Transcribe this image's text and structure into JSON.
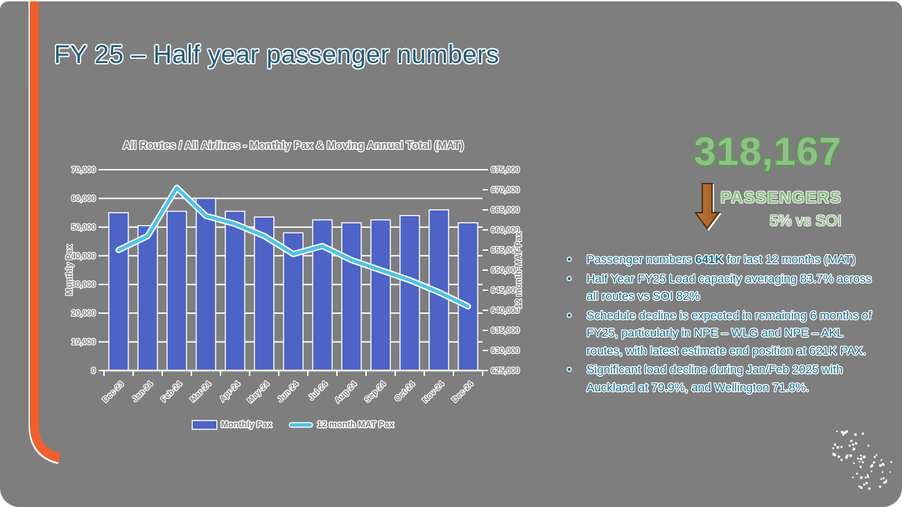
{
  "slide": {
    "title": "FY 25 – Half year passenger numbers"
  },
  "colors": {
    "background": "#7e7e7e",
    "ribbon_orange": "#f15f2c",
    "title_text": "#215c78",
    "bullet_text": "#176b8b",
    "bar_blue": "#4d63c6",
    "line_blue": "#4ec3e8",
    "grid_white": "#ffffff",
    "kpi_green": "#8fc186",
    "kpi_green_outline": "#5e9a54",
    "arrow_fill": "#b06a2c",
    "arrow_outline": "#4f2d10"
  },
  "chart_data": {
    "type": "bar+line combo",
    "title": "All Routes / All Airlines - Monthly Pax & Moving Annual Total (MAT)",
    "categories": [
      "Dec-23",
      "Jan-24",
      "Feb-24",
      "Mar-24",
      "Apr-24",
      "May-24",
      "Jun-24",
      "Jul-24",
      "Aug-24",
      "Sep-24",
      "Oct-24",
      "Nov-24",
      "Dec-24"
    ],
    "series": [
      {
        "name": "Monthly Pax",
        "type": "bar",
        "axis": "left",
        "values": [
          55000,
          50500,
          55500,
          60000,
          55500,
          53500,
          48000,
          52500,
          51500,
          52500,
          54000,
          56000,
          51500
        ]
      },
      {
        "name": "12 month MAT Pax",
        "type": "line",
        "axis": "right",
        "values": [
          655000,
          658500,
          670500,
          663500,
          661500,
          658500,
          654000,
          656000,
          652500,
          650000,
          647500,
          644500,
          641000
        ]
      }
    ],
    "left_axis": {
      "label": "Monthly Pax",
      "min": 0,
      "max": 70000,
      "step": 10000
    },
    "right_axis": {
      "label": "12 month MAT Pax",
      "min": 625000,
      "max": 675000,
      "step": 5000
    },
    "grid": true,
    "legend_position": "bottom"
  },
  "kpi": {
    "value": "318,167",
    "label": "PASSENGERS",
    "comparison": "5% vs SOI",
    "arrow": "down-arrow"
  },
  "bullets": [
    {
      "segments": [
        {
          "text": "Passenger numbers ",
          "bold": false
        },
        {
          "text": "641K",
          "bold": true
        },
        {
          "text": " for last 12 months (MAT)",
          "bold": false
        }
      ]
    },
    {
      "segments": [
        {
          "text": "Half Year FY25 Load capacity averaging 83.7% across all routes vs SOI 82%",
          "bold": false
        }
      ]
    },
    {
      "segments": [
        {
          "text": "Schedule decline is expected in remaining 6 months of FY25, particularly in NPE – WLG and NPE – AKL routes, with latest estimate end position at 621K PAX.",
          "bold": false
        }
      ]
    },
    {
      "segments": [
        {
          "text": "Significant load decline during Jan/Feb 2025 with Auckland at 79.9%, and Wellington 71.8%.",
          "bold": false
        }
      ]
    }
  ]
}
